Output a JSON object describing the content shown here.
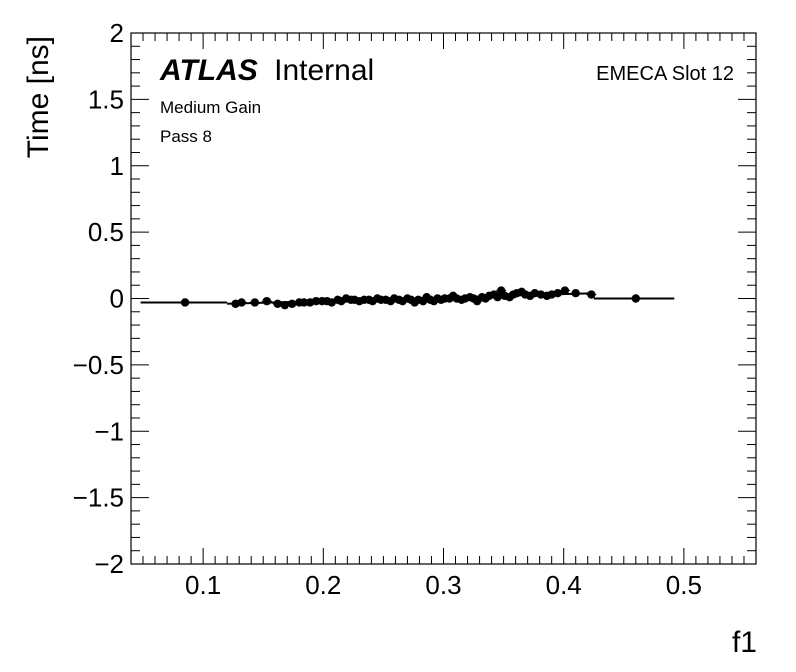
{
  "chart_data": {
    "type": "scatter",
    "title": "",
    "xlabel": "f1",
    "ylabel": "Time [ns]",
    "xlim": [
      0.04,
      0.56
    ],
    "ylim": [
      -2,
      2
    ],
    "x_ticks": [
      "0.1",
      "0.2",
      "0.3",
      "0.4",
      "0.5"
    ],
    "y_ticks": [
      "−2",
      "−1.5",
      "−1",
      "−0.5",
      "0",
      "0.5",
      "1",
      "1.5",
      "2"
    ],
    "annotations": {
      "experiment": "ATLAS",
      "status": "Internal",
      "gain": "Medium Gain",
      "pass": "Pass 8",
      "region": "EMECA Slot 12"
    },
    "grid": false,
    "points": [
      [
        0.085,
        -0.03
      ],
      [
        0.127,
        -0.04
      ],
      [
        0.132,
        -0.03
      ],
      [
        0.143,
        -0.03
      ],
      [
        0.153,
        -0.02
      ],
      [
        0.162,
        -0.04
      ],
      [
        0.168,
        -0.05
      ],
      [
        0.174,
        -0.04
      ],
      [
        0.18,
        -0.03
      ],
      [
        0.184,
        -0.03
      ],
      [
        0.189,
        -0.03
      ],
      [
        0.194,
        -0.02
      ],
      [
        0.199,
        -0.02
      ],
      [
        0.203,
        -0.02
      ],
      [
        0.207,
        -0.03
      ],
      [
        0.212,
        -0.01
      ],
      [
        0.215,
        -0.02
      ],
      [
        0.219,
        0.0
      ],
      [
        0.223,
        -0.01
      ],
      [
        0.226,
        -0.01
      ],
      [
        0.23,
        -0.02
      ],
      [
        0.234,
        -0.01
      ],
      [
        0.238,
        -0.01
      ],
      [
        0.241,
        -0.02
      ],
      [
        0.245,
        0.0
      ],
      [
        0.248,
        -0.01
      ],
      [
        0.252,
        -0.01
      ],
      [
        0.256,
        -0.02
      ],
      [
        0.259,
        0.0
      ],
      [
        0.263,
        -0.01
      ],
      [
        0.266,
        -0.02
      ],
      [
        0.27,
        0.0
      ],
      [
        0.273,
        -0.01
      ],
      [
        0.276,
        -0.03
      ],
      [
        0.279,
        -0.01
      ],
      [
        0.283,
        -0.02
      ],
      [
        0.286,
        0.01
      ],
      [
        0.289,
        -0.01
      ],
      [
        0.292,
        -0.02
      ],
      [
        0.295,
        0.0
      ],
      [
        0.298,
        -0.01
      ],
      [
        0.301,
        0.0
      ],
      [
        0.305,
        0.0
      ],
      [
        0.308,
        0.02
      ],
      [
        0.311,
        0.0
      ],
      [
        0.315,
        -0.01
      ],
      [
        0.318,
        0.0
      ],
      [
        0.322,
        0.01
      ],
      [
        0.325,
        0.0
      ],
      [
        0.328,
        -0.02
      ],
      [
        0.332,
        0.01
      ],
      [
        0.335,
        0.0
      ],
      [
        0.338,
        0.02
      ],
      [
        0.342,
        0.03
      ],
      [
        0.345,
        0.01
      ],
      [
        0.348,
        0.06
      ],
      [
        0.351,
        0.02
      ],
      [
        0.355,
        0.01
      ],
      [
        0.358,
        0.03
      ],
      [
        0.361,
        0.04
      ],
      [
        0.365,
        0.05
      ],
      [
        0.368,
        0.03
      ],
      [
        0.372,
        0.02
      ],
      [
        0.376,
        0.04
      ],
      [
        0.381,
        0.03
      ],
      [
        0.386,
        0.02
      ],
      [
        0.39,
        0.03
      ],
      [
        0.395,
        0.04
      ],
      [
        0.401,
        0.06
      ],
      [
        0.41,
        0.04
      ],
      [
        0.423,
        0.03
      ],
      [
        0.46,
        0.0
      ]
    ],
    "fit_line": {
      "segments": [
        [
          [
            0.048,
            -0.03
          ],
          [
            0.12,
            -0.03
          ]
        ],
        [
          [
            0.12,
            -0.04
          ],
          [
            0.425,
            0.04
          ]
        ],
        [
          [
            0.425,
            0.0
          ],
          [
            0.492,
            0.0
          ]
        ]
      ]
    }
  }
}
